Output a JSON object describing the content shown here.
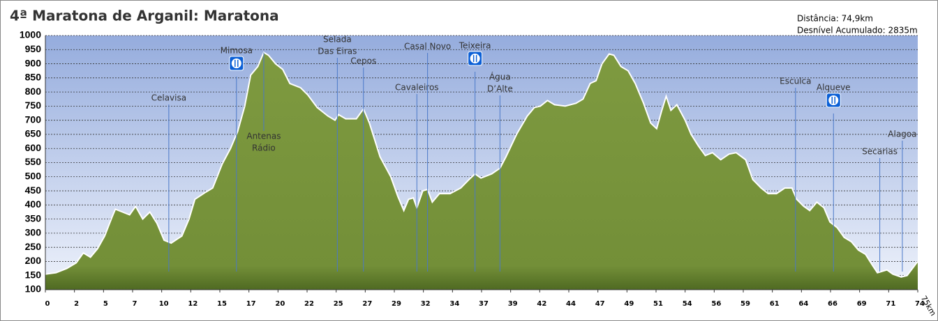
{
  "chart_data": {
    "type": "area",
    "title": "4ª Maratona de Arganil: Maratona",
    "info": [
      "Distância: 74,9km",
      "Desnível Acumulado: 2835m"
    ],
    "x_end_label": "75km",
    "x": [
      0,
      0.9,
      1.8,
      2.6,
      3.2,
      3.8,
      4.4,
      5.0,
      5.6,
      5.9,
      6.5,
      7.1,
      7.6,
      8.2,
      8.8,
      9.4,
      10.0,
      10.6,
      11.5,
      12.1,
      12.6,
      13.5,
      14.1,
      14.9,
      15.6,
      16.2,
      16.8,
      17.3,
      17.9,
      18.4,
      18.8,
      19.4,
      20.0,
      20.6,
      21.5,
      22.1,
      22.9,
      23.8,
      24.4,
      24.7,
      25.3,
      26.2,
      26.8,
      27.3,
      28.2,
      29.1,
      29.7,
      30.2,
      30.6,
      31.0,
      31.3,
      31.8,
      32.2,
      32.6,
      33.2,
      34.1,
      35.0,
      35.7,
      36.2,
      36.7,
      37.6,
      38.3,
      38.8,
      39.7,
      40.6,
      41.2,
      41.7,
      42.3,
      42.9,
      43.8,
      44.7,
      45.3,
      45.9,
      46.4,
      46.9,
      47.5,
      47.9,
      48.5,
      49.1,
      49.7,
      50.4,
      51.0,
      51.5,
      51.9,
      52.3,
      52.7,
      53.2,
      53.9,
      54.4,
      55.0,
      55.6,
      56.2,
      56.9,
      57.6,
      58.2,
      59.0,
      59.6,
      60.3,
      60.9,
      61.6,
      62.3,
      62.9,
      63.3,
      63.9,
      64.4,
      65.0,
      65.6,
      66.1,
      66.7,
      67.3,
      67.9,
      68.5,
      69.1,
      69.7,
      70.1,
      70.9,
      71.4,
      72.1,
      72.6,
      73.5
    ],
    "values": [
      155,
      160,
      175,
      195,
      230,
      215,
      245,
      290,
      355,
      385,
      375,
      365,
      395,
      350,
      375,
      335,
      275,
      265,
      290,
      350,
      420,
      445,
      460,
      545,
      600,
      660,
      750,
      860,
      890,
      940,
      930,
      900,
      880,
      830,
      815,
      790,
      745,
      715,
      700,
      720,
      705,
      705,
      740,
      690,
      570,
      500,
      430,
      380,
      420,
      425,
      390,
      450,
      455,
      410,
      440,
      440,
      460,
      490,
      510,
      495,
      510,
      530,
      570,
      650,
      715,
      745,
      750,
      770,
      755,
      750,
      760,
      775,
      830,
      840,
      900,
      935,
      930,
      890,
      875,
      830,
      760,
      690,
      670,
      730,
      785,
      735,
      755,
      700,
      650,
      610,
      575,
      585,
      560,
      580,
      585,
      560,
      490,
      460,
      440,
      440,
      460,
      460,
      420,
      395,
      380,
      410,
      390,
      340,
      320,
      285,
      270,
      240,
      225,
      185,
      160,
      170,
      155,
      145,
      150,
      200
    ],
    "color": "#77933c",
    "xlim": [
      0,
      73.5
    ],
    "ylim": [
      100,
      1000
    ],
    "yticks": [
      100,
      150,
      200,
      250,
      300,
      350,
      400,
      450,
      500,
      550,
      600,
      650,
      700,
      750,
      800,
      850,
      900,
      950,
      1000
    ],
    "xticks": [
      {
        "value": 0,
        "label": "0"
      },
      {
        "value": 2.45,
        "label": "2"
      },
      {
        "value": 4.9,
        "label": "5"
      },
      {
        "value": 7.35,
        "label": "7"
      },
      {
        "value": 9.8,
        "label": "10"
      },
      {
        "value": 12.25,
        "label": "12"
      },
      {
        "value": 14.7,
        "label": "15"
      },
      {
        "value": 17.15,
        "label": "17"
      },
      {
        "value": 19.6,
        "label": "20"
      },
      {
        "value": 22.05,
        "label": "22"
      },
      {
        "value": 24.5,
        "label": "25"
      },
      {
        "value": 26.95,
        "label": "27"
      },
      {
        "value": 29.4,
        "label": "29"
      },
      {
        "value": 31.85,
        "label": "32"
      },
      {
        "value": 34.3,
        "label": "34"
      },
      {
        "value": 36.75,
        "label": "37"
      },
      {
        "value": 39.2,
        "label": "39"
      },
      {
        "value": 41.65,
        "label": "42"
      },
      {
        "value": 44.1,
        "label": "44"
      },
      {
        "value": 46.55,
        "label": "47"
      },
      {
        "value": 49,
        "label": "49"
      },
      {
        "value": 51.45,
        "label": "51"
      },
      {
        "value": 53.9,
        "label": "54"
      },
      {
        "value": 56.35,
        "label": "56"
      },
      {
        "value": 58.8,
        "label": "59"
      },
      {
        "value": 61.25,
        "label": "61"
      },
      {
        "value": 63.7,
        "label": "64"
      },
      {
        "value": 66.15,
        "label": "66"
      },
      {
        "value": 68.6,
        "label": "69"
      },
      {
        "value": 71.05,
        "label": "71"
      },
      {
        "value": 73.5,
        "label": "74"
      }
    ],
    "grid": true,
    "waypoints": [
      {
        "label": [
          "Celavisa"
        ],
        "x": 10.4
      },
      {
        "label": [
          "Mimosa"
        ],
        "x": 16.1,
        "food": true
      },
      {
        "label": [
          "Antenas",
          "Rádio"
        ],
        "x": 18.4
      },
      {
        "label": [
          "Selada",
          "Das Eiras"
        ],
        "x": 24.6
      },
      {
        "label": [
          "Cepos"
        ],
        "x": 26.8
      },
      {
        "label": [
          "Cavaleiros"
        ],
        "x": 31.3
      },
      {
        "label": [
          "Casal Novo"
        ],
        "x": 32.2
      },
      {
        "label": [
          "Teixeira"
        ],
        "x": 36.2,
        "food": true
      },
      {
        "label": [
          "Água",
          "D’Alte"
        ],
        "x": 38.3
      },
      {
        "label": [
          "Esculca"
        ],
        "x": 63.2
      },
      {
        "label": [
          "Alqueve"
        ],
        "x": 66.4,
        "food": true
      },
      {
        "label": [
          "Secarias"
        ],
        "x": 70.3
      },
      {
        "label": [
          "Alagoa"
        ],
        "x": 72.2
      }
    ]
  }
}
